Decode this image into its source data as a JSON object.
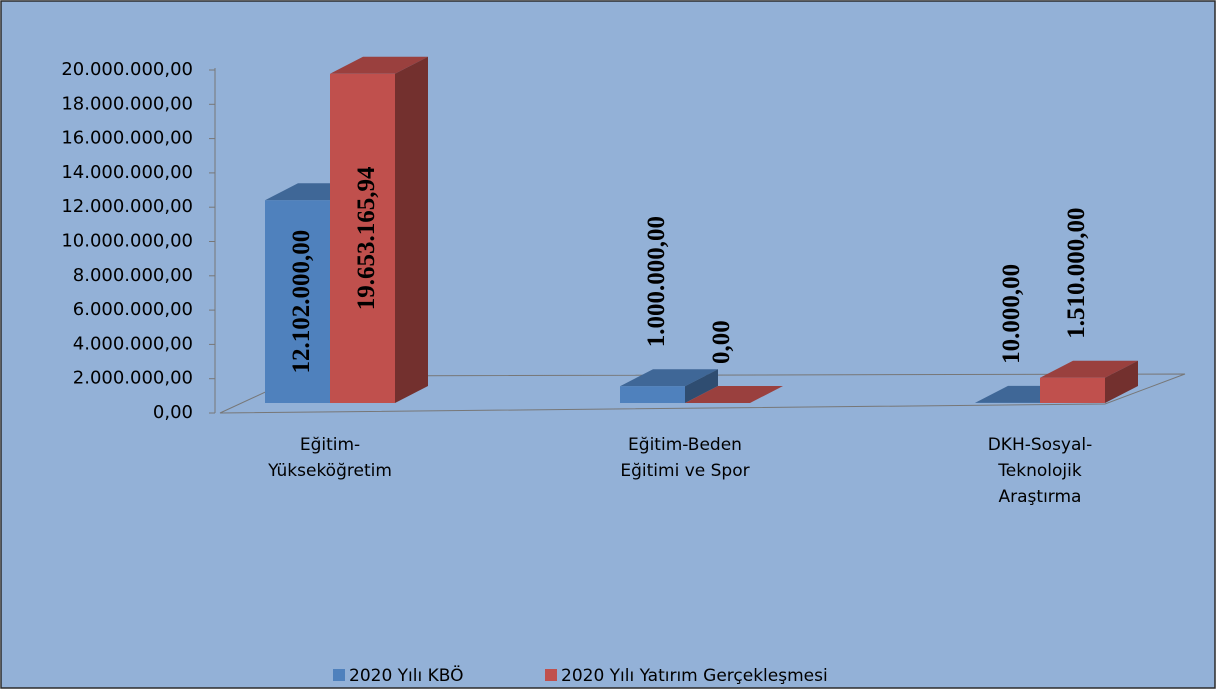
{
  "chart_data": {
    "type": "bar3d",
    "categories": [
      "Eğitim-Yükseköğretim",
      "Eğitim-Beden Eğitimi ve Spor",
      "DKH-Sosyal-Teknolojik Araştırma"
    ],
    "series": [
      {
        "name": "2020 Yılı KBÖ",
        "color": "#4f81bd",
        "values": [
          12102000,
          1000000,
          10000
        ],
        "value_labels": [
          "12.102.000,00",
          "1.000.000,00",
          "10.000,00"
        ]
      },
      {
        "name": "2020 Yılı Yatırım Gerçekleşmesi",
        "color": "#c0504d",
        "values": [
          19653165.94,
          0,
          1510000
        ],
        "value_labels": [
          "19.653.165,94",
          "0,00",
          "1.510.000,00"
        ]
      }
    ],
    "ylim": [
      0,
      20000000
    ],
    "yticks": [
      {
        "value": 0,
        "label": "0,00"
      },
      {
        "value": 2000000,
        "label": "2.000.000,00"
      },
      {
        "value": 4000000,
        "label": "4.000.000,00"
      },
      {
        "value": 6000000,
        "label": "6.000.000,00"
      },
      {
        "value": 8000000,
        "label": "8.000.000,00"
      },
      {
        "value": 10000000,
        "label": "10.000.000,00"
      },
      {
        "value": 12000000,
        "label": "12.000.000,00"
      },
      {
        "value": 14000000,
        "label": "14.000.000,00"
      },
      {
        "value": 16000000,
        "label": "16.000.000,00"
      },
      {
        "value": 18000000,
        "label": "18.000.000,00"
      },
      {
        "value": 20000000,
        "label": "20.000.000,00"
      }
    ],
    "legend": "bottom"
  }
}
